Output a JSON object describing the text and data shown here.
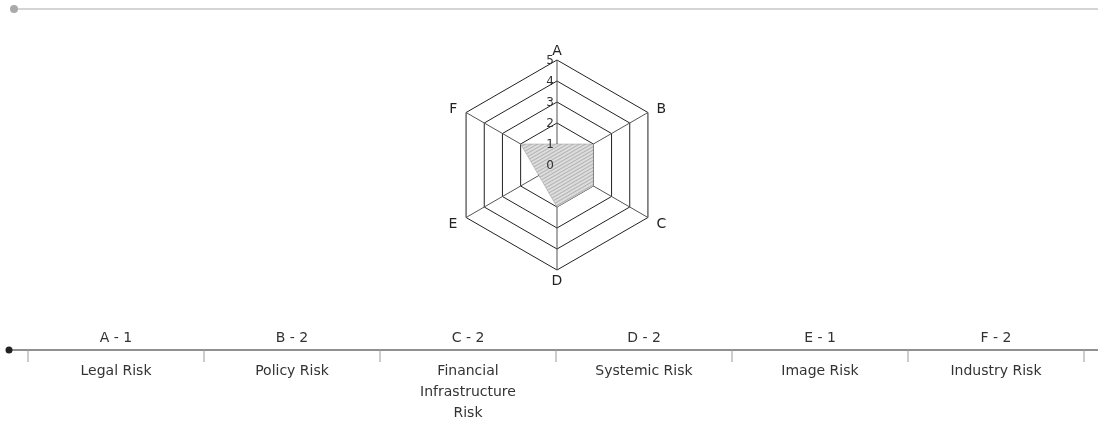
{
  "chart_data": {
    "type": "radar",
    "categories": [
      "A",
      "B",
      "C",
      "D",
      "E",
      "F"
    ],
    "series": [
      {
        "color": "#999999",
        "values": [
          1,
          2,
          2,
          2,
          1,
          2
        ]
      }
    ],
    "ylim": [
      0,
      5
    ],
    "yticks": [
      0,
      1,
      2,
      3,
      4,
      5
    ],
    "annotations": [
      "A - 1",
      "B - 2",
      "C - 2",
      "D - 2",
      "E - 1",
      "F - 2",
      "Legal Risk",
      "Policy Risk",
      "Financial Infrastructure Risk",
      "Systemic Risk",
      "Image Risk",
      "Industry Risk"
    ]
  }
}
